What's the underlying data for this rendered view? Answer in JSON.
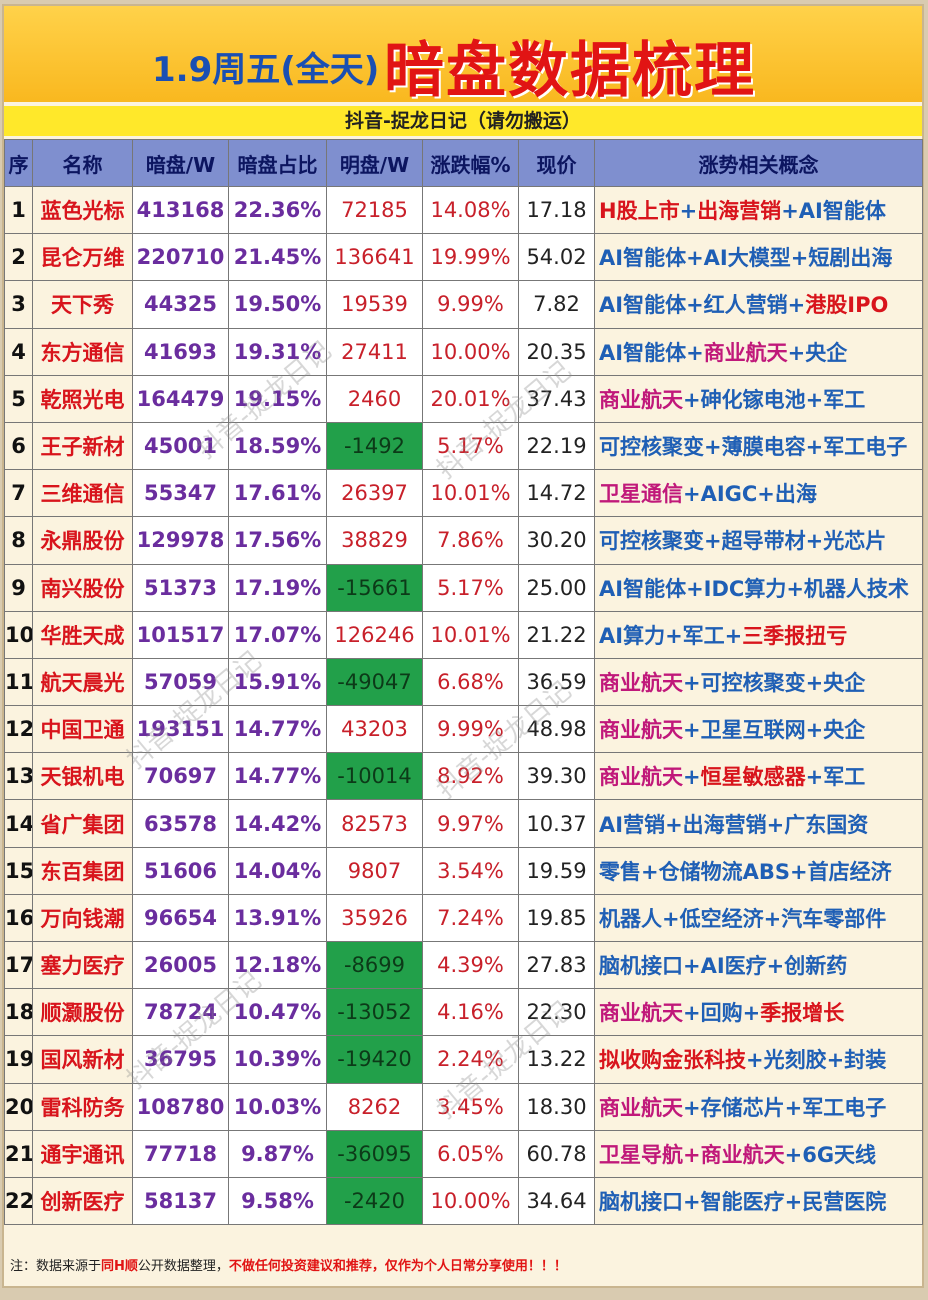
{
  "header": {
    "title_small": "1.9周五(全天)",
    "title_big": "暗盘数据梳理",
    "subtitle": "抖音-捉龙日记（请勿搬运）"
  },
  "columns": [
    "序",
    "名称",
    "暗盘/W",
    "暗盘占比",
    "明盘/W",
    "涨跌幅%",
    "现价",
    "涨势相关概念"
  ],
  "rows": [
    {
      "idx": "1",
      "name": "蓝色光标",
      "dark": "413168",
      "ratio": "22.36%",
      "ming": "72185",
      "neg": false,
      "chg": "14.08%",
      "price": "17.18",
      "concepts": [
        {
          "t": "H股上市",
          "c": "red"
        },
        {
          "t": "+",
          "c": "blue"
        },
        {
          "t": "出海营销",
          "c": "red"
        },
        {
          "t": "+AI智能体",
          "c": "blue"
        }
      ]
    },
    {
      "idx": "2",
      "name": "昆仑万维",
      "dark": "220710",
      "ratio": "21.45%",
      "ming": "136641",
      "neg": false,
      "chg": "19.99%",
      "price": "54.02",
      "concepts": [
        {
          "t": "AI智能体+AI大模型+短剧出海",
          "c": "blue"
        }
      ]
    },
    {
      "idx": "3",
      "name": "天下秀",
      "dark": "44325",
      "ratio": "19.50%",
      "ming": "19539",
      "neg": false,
      "chg": "9.99%",
      "price": "7.82",
      "concepts": [
        {
          "t": "AI智能体+红人营销+",
          "c": "blue"
        },
        {
          "t": "港股IPO",
          "c": "red"
        }
      ]
    },
    {
      "idx": "4",
      "name": "东方通信",
      "dark": "41693",
      "ratio": "19.31%",
      "ming": "27411",
      "neg": false,
      "chg": "10.00%",
      "price": "20.35",
      "concepts": [
        {
          "t": "AI智能体+",
          "c": "blue"
        },
        {
          "t": "商业航天",
          "c": "pink"
        },
        {
          "t": "+央企",
          "c": "blue"
        }
      ]
    },
    {
      "idx": "5",
      "name": "乾照光电",
      "dark": "164479",
      "ratio": "19.15%",
      "ming": "2460",
      "neg": false,
      "chg": "20.01%",
      "price": "37.43",
      "concepts": [
        {
          "t": "商业航天",
          "c": "pink"
        },
        {
          "t": "+砷化镓电池+军工",
          "c": "blue"
        }
      ]
    },
    {
      "idx": "6",
      "name": "王子新材",
      "dark": "45001",
      "ratio": "18.59%",
      "ming": "-1492",
      "neg": true,
      "chg": "5.17%",
      "price": "22.19",
      "concepts": [
        {
          "t": "可控核聚变+薄膜电容+军工电子",
          "c": "blue"
        }
      ]
    },
    {
      "idx": "7",
      "name": "三维通信",
      "dark": "55347",
      "ratio": "17.61%",
      "ming": "26397",
      "neg": false,
      "chg": "10.01%",
      "price": "14.72",
      "concepts": [
        {
          "t": "卫星通信",
          "c": "pink"
        },
        {
          "t": "+AIGC+出海",
          "c": "blue"
        }
      ]
    },
    {
      "idx": "8",
      "name": "永鼎股份",
      "dark": "129978",
      "ratio": "17.56%",
      "ming": "38829",
      "neg": false,
      "chg": "7.86%",
      "price": "30.20",
      "concepts": [
        {
          "t": "可控核聚变+超导带材+光芯片",
          "c": "blue"
        }
      ]
    },
    {
      "idx": "9",
      "name": "南兴股份",
      "dark": "51373",
      "ratio": "17.19%",
      "ming": "-15661",
      "neg": true,
      "chg": "5.17%",
      "price": "25.00",
      "concepts": [
        {
          "t": "AI智能体+IDC算力+机器人技术",
          "c": "blue"
        }
      ]
    },
    {
      "idx": "10",
      "name": "华胜天成",
      "dark": "101517",
      "ratio": "17.07%",
      "ming": "126246",
      "neg": false,
      "chg": "10.01%",
      "price": "21.22",
      "concepts": [
        {
          "t": "AI算力+军工+",
          "c": "blue"
        },
        {
          "t": "三季报扭亏",
          "c": "red"
        }
      ]
    },
    {
      "idx": "11",
      "name": "航天晨光",
      "dark": "57059",
      "ratio": "15.91%",
      "ming": "-49047",
      "neg": true,
      "chg": "6.68%",
      "price": "36.59",
      "concepts": [
        {
          "t": "商业航天",
          "c": "pink"
        },
        {
          "t": "+可控核聚变+央企",
          "c": "blue"
        }
      ]
    },
    {
      "idx": "12",
      "name": "中国卫通",
      "dark": "193151",
      "ratio": "14.77%",
      "ming": "43203",
      "neg": false,
      "chg": "9.99%",
      "price": "48.98",
      "concepts": [
        {
          "t": "商业航天",
          "c": "pink"
        },
        {
          "t": "+卫星互联网+央企",
          "c": "blue"
        }
      ]
    },
    {
      "idx": "13",
      "name": "天银机电",
      "dark": "70697",
      "ratio": "14.77%",
      "ming": "-10014",
      "neg": true,
      "chg": "8.92%",
      "price": "39.30",
      "concepts": [
        {
          "t": "商业航天",
          "c": "pink"
        },
        {
          "t": "+",
          "c": "blue"
        },
        {
          "t": "恒星敏感器",
          "c": "red"
        },
        {
          "t": "+军工",
          "c": "blue"
        }
      ]
    },
    {
      "idx": "14",
      "name": "省广集团",
      "dark": "63578",
      "ratio": "14.42%",
      "ming": "82573",
      "neg": false,
      "chg": "9.97%",
      "price": "10.37",
      "concepts": [
        {
          "t": "AI营销+出海营销+广东国资",
          "c": "blue"
        }
      ]
    },
    {
      "idx": "15",
      "name": "东百集团",
      "dark": "51606",
      "ratio": "14.04%",
      "ming": "9807",
      "neg": false,
      "chg": "3.54%",
      "price": "19.59",
      "concepts": [
        {
          "t": "零售+仓储物流ABS+首店经济",
          "c": "blue"
        }
      ]
    },
    {
      "idx": "16",
      "name": "万向钱潮",
      "dark": "96654",
      "ratio": "13.91%",
      "ming": "35926",
      "neg": false,
      "chg": "7.24%",
      "price": "19.85",
      "concepts": [
        {
          "t": "机器人+低空经济+汽车零部件",
          "c": "blue"
        }
      ]
    },
    {
      "idx": "17",
      "name": "塞力医疗",
      "dark": "26005",
      "ratio": "12.18%",
      "ming": "-8699",
      "neg": true,
      "chg": "4.39%",
      "price": "27.83",
      "concepts": [
        {
          "t": "脑机接口+AI医疗+创新药",
          "c": "blue"
        }
      ]
    },
    {
      "idx": "18",
      "name": "顺灏股份",
      "dark": "78724",
      "ratio": "10.47%",
      "ming": "-13052",
      "neg": true,
      "chg": "4.16%",
      "price": "22.30",
      "concepts": [
        {
          "t": "商业航天",
          "c": "pink"
        },
        {
          "t": "+回购+",
          "c": "blue"
        },
        {
          "t": "季报增长",
          "c": "red"
        }
      ]
    },
    {
      "idx": "19",
      "name": "国风新材",
      "dark": "36795",
      "ratio": "10.39%",
      "ming": "-19420",
      "neg": true,
      "chg": "2.24%",
      "price": "13.22",
      "concepts": [
        {
          "t": "拟收购金张科技",
          "c": "red"
        },
        {
          "t": "+光刻胶+封装",
          "c": "blue"
        }
      ]
    },
    {
      "idx": "20",
      "name": "雷科防务",
      "dark": "108780",
      "ratio": "10.03%",
      "ming": "8262",
      "neg": false,
      "chg": "3.45%",
      "price": "18.30",
      "concepts": [
        {
          "t": "商业航天",
          "c": "pink"
        },
        {
          "t": "+存储芯片+军工电子",
          "c": "blue"
        }
      ]
    },
    {
      "idx": "21",
      "name": "通宇通讯",
      "dark": "77718",
      "ratio": "9.87%",
      "ming": "-36095",
      "neg": true,
      "chg": "6.05%",
      "price": "60.78",
      "concepts": [
        {
          "t": "卫星导航+商业航天",
          "c": "pink"
        },
        {
          "t": "+6G天线",
          "c": "blue"
        }
      ]
    },
    {
      "idx": "22",
      "name": "创新医疗",
      "dark": "58137",
      "ratio": "9.58%",
      "ming": "-2420",
      "neg": true,
      "chg": "10.00%",
      "price": "34.64",
      "concepts": [
        {
          "t": "脑机接口+智能医疗+民营医院",
          "c": "blue"
        }
      ]
    }
  ],
  "footer": {
    "prefix": "注：数据来源于",
    "source": "同H顺",
    "middle": "公开数据整理，",
    "warning": "不做任何投资建议和推荐，仅作为个人日常分享使用！！！"
  },
  "watermark_text": "抖音-捉龙日记",
  "colors": {
    "title_bg": "#f9b81f",
    "title_red": "#e11414",
    "title_blue": "#1a4fb3",
    "header_bg": "#7f8fcf",
    "negative_bg": "#22a04a",
    "concept_blue": "#1f5fb5",
    "concept_pink": "#c0187a"
  }
}
